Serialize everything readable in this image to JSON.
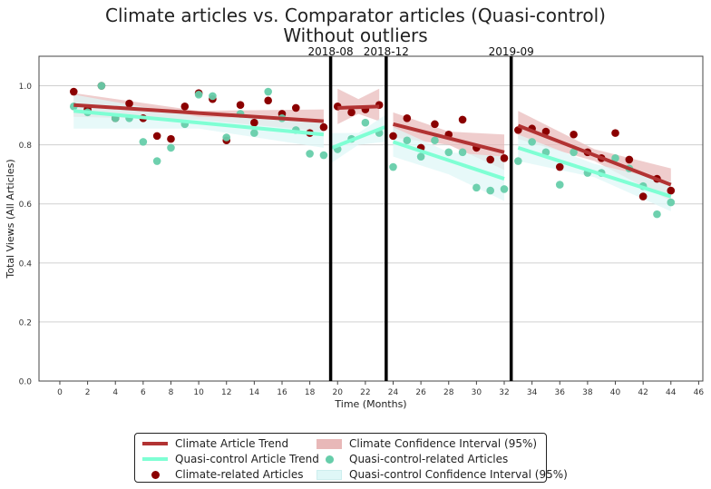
{
  "title": "Climate articles vs. Comparator articles (Quasi-control)",
  "subtitle": "Without outliers",
  "colors": {
    "climate_dot": "#8b0000",
    "climate_line": "#b23333",
    "climate_band": "#e8b8b8",
    "control_dot": "#66cdaa",
    "control_line": "#7fffd4",
    "control_band": "#dff7f7",
    "event_line": "#000000",
    "grid": "#d0d0d0"
  },
  "legend": {
    "climate_trend": "Climate Article Trend",
    "control_trend": "Quasi-control Article Trend",
    "climate_points": "Climate-related Articles",
    "climate_ci": "Climate Confidence Interval (95%)",
    "control_points": "Quasi-control-related Articles",
    "control_ci": "Quasi-control Confidence Interval (95%)"
  },
  "chart_data": {
    "type": "scatter",
    "title": "Climate articles vs. Comparator articles (Quasi-control)",
    "subtitle": "Without outliers",
    "xlabel": "Time (Months)",
    "ylabel": "Total Views (All Articles)",
    "xlim": [
      -1.5,
      46.3
    ],
    "ylim": [
      0.0,
      1.1
    ],
    "xticks": [
      0,
      2,
      4,
      6,
      8,
      10,
      12,
      14,
      16,
      18,
      20,
      22,
      24,
      26,
      28,
      30,
      32,
      34,
      36,
      38,
      40,
      42,
      44,
      46
    ],
    "yticks": [
      0.0,
      0.2,
      0.4,
      0.6,
      0.8,
      1.0
    ],
    "grid": "horizontal",
    "legend_position": "below",
    "events": [
      {
        "label": "2018-08",
        "x": 19.5
      },
      {
        "label": "2018-12",
        "x": 23.5
      },
      {
        "label": "2019-09",
        "x": 32.5
      }
    ],
    "series": [
      {
        "name": "Climate-related Articles",
        "kind": "points",
        "x": [
          1,
          2,
          3,
          4,
          5,
          6,
          7,
          8,
          9,
          10,
          11,
          12,
          13,
          14,
          15,
          16,
          17,
          18,
          19,
          20,
          21,
          22,
          23,
          24,
          25,
          26,
          27,
          28,
          29,
          30,
          31,
          32,
          33,
          34,
          35,
          36,
          37,
          38,
          39,
          40,
          41,
          42,
          43,
          44
        ],
        "y": [
          0.98,
          0.92,
          1.0,
          0.89,
          0.94,
          0.89,
          0.83,
          0.82,
          0.93,
          0.975,
          0.955,
          0.815,
          0.935,
          0.875,
          0.95,
          0.905,
          0.925,
          0.84,
          0.86,
          0.93,
          0.91,
          0.92,
          0.935,
          0.83,
          0.89,
          0.79,
          0.87,
          0.835,
          0.885,
          0.79,
          0.75,
          0.755,
          0.85,
          0.855,
          0.845,
          0.725,
          0.835,
          0.775,
          0.755,
          0.84,
          0.75,
          0.625,
          0.685,
          0.645
        ]
      },
      {
        "name": "Quasi-control-related Articles",
        "kind": "points",
        "x": [
          1,
          2,
          3,
          4,
          5,
          6,
          7,
          8,
          9,
          10,
          11,
          12,
          13,
          14,
          15,
          16,
          17,
          18,
          19,
          20,
          21,
          22,
          23,
          24,
          25,
          26,
          27,
          28,
          29,
          30,
          31,
          32,
          33,
          34,
          35,
          36,
          37,
          38,
          39,
          40,
          41,
          42,
          43,
          44
        ],
        "y": [
          0.93,
          0.91,
          1.0,
          0.89,
          0.89,
          0.81,
          0.745,
          0.79,
          0.87,
          0.97,
          0.965,
          0.825,
          0.905,
          0.84,
          0.98,
          0.89,
          0.85,
          0.77,
          0.765,
          0.785,
          0.82,
          0.875,
          0.84,
          0.725,
          0.815,
          0.76,
          0.815,
          0.775,
          0.775,
          0.655,
          0.645,
          0.65,
          0.745,
          0.81,
          0.775,
          0.665,
          0.775,
          0.705,
          0.705,
          0.755,
          0.72,
          0.66,
          0.565,
          0.605
        ]
      },
      {
        "name": "Climate Article Trend",
        "kind": "trend",
        "segments": [
          {
            "x": [
              1,
              19
            ],
            "y": [
              0.935,
              0.88
            ],
            "ci_lower": [
              [
                1,
                0.895
              ],
              [
                10,
                0.885
              ],
              [
                19,
                0.845
              ]
            ],
            "ci_upper": [
              [
                1,
                0.975
              ],
              [
                10,
                0.915
              ],
              [
                19,
                0.92
              ]
            ]
          },
          {
            "x": [
              20,
              23
            ],
            "y": [
              0.925,
              0.93
            ],
            "ci_lower": [
              [
                20,
                0.87
              ],
              [
                21.5,
                0.905
              ],
              [
                23,
                0.88
              ]
            ],
            "ci_upper": [
              [
                20,
                0.99
              ],
              [
                21.5,
                0.955
              ],
              [
                23,
                0.99
              ]
            ]
          },
          {
            "x": [
              24,
              32
            ],
            "y": [
              0.87,
              0.775
            ],
            "ci_lower": [
              [
                24,
                0.825
              ],
              [
                28,
                0.8
              ],
              [
                32,
                0.715
              ]
            ],
            "ci_upper": [
              [
                24,
                0.91
              ],
              [
                28,
                0.845
              ],
              [
                32,
                0.835
              ]
            ]
          },
          {
            "x": [
              33,
              44
            ],
            "y": [
              0.865,
              0.665
            ],
            "ci_lower": [
              [
                33,
                0.82
              ],
              [
                38.5,
                0.745
              ],
              [
                44,
                0.61
              ]
            ],
            "ci_upper": [
              [
                33,
                0.915
              ],
              [
                38.5,
                0.785
              ],
              [
                44,
                0.72
              ]
            ]
          }
        ]
      },
      {
        "name": "Quasi-control Article Trend",
        "kind": "trend",
        "segments": [
          {
            "x": [
              1,
              19
            ],
            "y": [
              0.915,
              0.835
            ],
            "ci_lower": [
              [
                1,
                0.855
              ],
              [
                10,
                0.855
              ],
              [
                19,
                0.79
              ]
            ],
            "ci_upper": [
              [
                1,
                0.97
              ],
              [
                10,
                0.895
              ],
              [
                19,
                0.885
              ]
            ]
          },
          {
            "x": [
              19.6,
              23.4
            ],
            "y": [
              0.79,
              0.86
            ],
            "ci_lower": [
              [
                19.6,
                0.74
              ],
              [
                21.5,
                0.8
              ],
              [
                23.4,
                0.81
              ]
            ],
            "ci_upper": [
              [
                19.6,
                0.84
              ],
              [
                21.5,
                0.84
              ],
              [
                23.4,
                0.9
              ]
            ]
          },
          {
            "x": [
              24,
              32
            ],
            "y": [
              0.81,
              0.685
            ],
            "ci_lower": [
              [
                24,
                0.76
              ],
              [
                28,
                0.7
              ],
              [
                32,
                0.61
              ]
            ],
            "ci_upper": [
              [
                24,
                0.86
              ],
              [
                28,
                0.775
              ],
              [
                32,
                0.76
              ]
            ]
          },
          {
            "x": [
              33,
              44
            ],
            "y": [
              0.79,
              0.625
            ],
            "ci_lower": [
              [
                33,
                0.745
              ],
              [
                38.5,
                0.69
              ],
              [
                44,
                0.575
              ]
            ],
            "ci_upper": [
              [
                33,
                0.835
              ],
              [
                38.5,
                0.735
              ],
              [
                44,
                0.675
              ]
            ]
          }
        ]
      }
    ]
  }
}
